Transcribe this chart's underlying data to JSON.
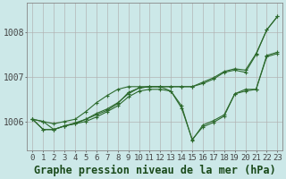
{
  "title": "Graphe pression niveau de la mer (hPa)",
  "bg_color": "#cce8e8",
  "grid_color_v": "#b0b0b0",
  "grid_color_h": "#b0b0b0",
  "line_color": "#2d6a2d",
  "xlim": [
    -0.5,
    23.5
  ],
  "ylim": [
    1005.35,
    1008.65
  ],
  "yticks": [
    1006,
    1007,
    1008
  ],
  "series": [
    [
      1006.05,
      1006.0,
      1005.82,
      1005.9,
      1005.95,
      1006.05,
      1006.15,
      1006.25,
      1006.4,
      1006.65,
      1006.75,
      1006.78,
      1006.78,
      1006.78,
      1006.78,
      1006.78,
      1006.85,
      1006.95,
      1007.1,
      1007.15,
      1007.1,
      1007.5,
      1008.05,
      1008.35
    ],
    [
      1006.05,
      1005.82,
      1005.82,
      1005.9,
      1005.95,
      1006.0,
      1006.1,
      1006.22,
      1006.35,
      1006.55,
      1006.68,
      1006.72,
      1006.72,
      1006.68,
      1006.3,
      1005.6,
      1005.88,
      1005.98,
      1006.12,
      1006.62,
      1006.68,
      1006.72,
      1007.45,
      1007.52
    ],
    [
      1006.05,
      1005.82,
      1005.82,
      1005.9,
      1005.97,
      1006.05,
      1006.18,
      1006.28,
      1006.42,
      1006.62,
      1006.75,
      1006.78,
      1006.78,
      1006.68,
      1006.35,
      1005.58,
      1005.92,
      1006.02,
      1006.15,
      1006.62,
      1006.72,
      1006.72,
      1007.48,
      1007.55
    ],
    [
      1006.05,
      1006.0,
      1005.95,
      1006.0,
      1006.05,
      1006.22,
      1006.42,
      1006.58,
      1006.72,
      1006.78,
      1006.78,
      1006.78,
      1006.78,
      1006.78,
      1006.78,
      1006.78,
      1006.88,
      1006.98,
      1007.12,
      1007.18,
      1007.15,
      1007.52,
      1008.05,
      1008.35
    ]
  ],
  "title_fontsize": 8.5,
  "tick_fontsize": 6.5
}
